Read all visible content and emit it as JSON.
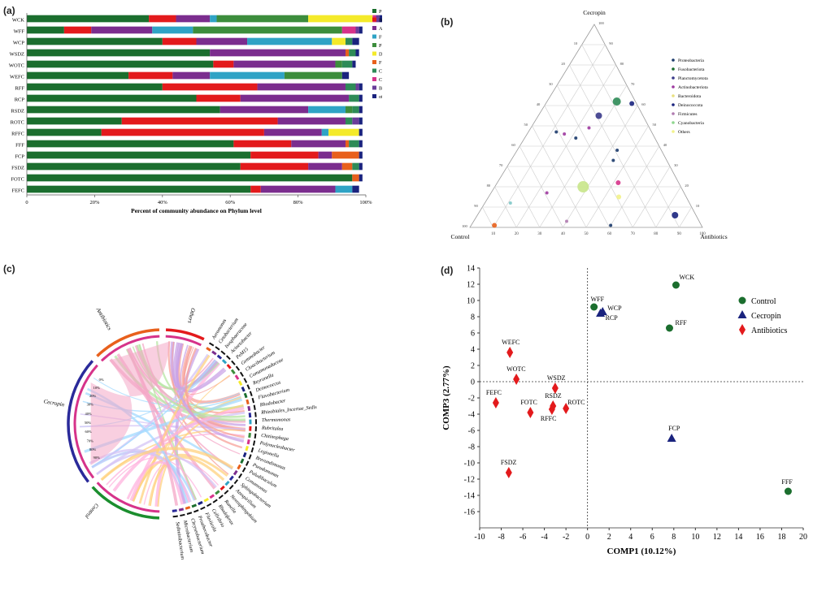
{
  "panel_labels": [
    "(a)",
    "(b)",
    "(c)",
    "(d)"
  ],
  "colors": {
    "Proteobacteria": "#1b6e2e",
    "Bacteroidota": "#e31a1c",
    "Actinobacteriota": "#7b2d8e",
    "Fusobacteriota": "#2fa3c5",
    "Planctomycetota": "#3c8d3c",
    "Deinococcota": "#f4ea2a",
    "Firmicutes": "#e8601c",
    "Chloroflexi": "#2e8b57",
    "Cyanobacteria": "#d6338a",
    "Bdellovibrionota": "#6a3d9a",
    "others": "#1a237e"
  },
  "chart_data": [
    {
      "type": "bar",
      "orientation": "horizontal",
      "stacked": true,
      "xlabel": "Percent of community abundance on Phylum level",
      "xticks": [
        "0",
        "20%",
        "40%",
        "60%",
        "80%",
        "100%"
      ],
      "xlim": [
        0,
        100
      ],
      "categories": [
        "WCK",
        "WFF",
        "WCP",
        "WSDZ",
        "WOTC",
        "WEFC",
        "RFF",
        "RCP",
        "RSDZ",
        "ROTC",
        "RFFC",
        "FFF",
        "FCP",
        "FSDZ",
        "FOTC",
        "FEFC"
      ],
      "series": [
        {
          "name": "Proteobacteria",
          "values": [
            36,
            11,
            40,
            54,
            55,
            30,
            40,
            50,
            57,
            28,
            22,
            61,
            66,
            63,
            96,
            66
          ]
        },
        {
          "name": "Bacteroidota",
          "values": [
            8,
            8,
            10,
            0,
            6,
            13,
            28,
            13,
            0,
            46,
            48,
            17,
            20,
            20,
            0,
            3
          ]
        },
        {
          "name": "Actinobacteriota",
          "values": [
            10,
            18,
            15,
            40,
            30,
            11,
            26,
            32,
            26,
            20,
            17,
            16,
            4,
            10,
            0,
            22
          ]
        },
        {
          "name": "Fusobacteriota",
          "values": [
            2,
            12,
            25,
            0,
            0,
            22,
            0,
            0,
            11,
            0,
            2,
            0,
            0,
            0,
            0,
            5
          ]
        },
        {
          "name": "Planctomycetota",
          "values": [
            27,
            44,
            0,
            0,
            2,
            17,
            0,
            0,
            2,
            0,
            0,
            0,
            0,
            0,
            0,
            0
          ]
        },
        {
          "name": "Deinococcota",
          "values": [
            19,
            0,
            4,
            0,
            0,
            0,
            0,
            0,
            0,
            0,
            9,
            0,
            0,
            0,
            0,
            0
          ]
        },
        {
          "name": "Firmicutes",
          "values": [
            0,
            0,
            0,
            1,
            0,
            0,
            0,
            0,
            0,
            0,
            0,
            1,
            8,
            3,
            2,
            0
          ]
        },
        {
          "name": "Chloroflexi",
          "values": [
            0,
            0,
            2,
            2,
            3,
            0,
            3,
            3,
            2,
            2,
            0,
            3,
            0,
            2,
            0,
            0
          ]
        },
        {
          "name": "Cyanobacteria",
          "values": [
            1,
            4,
            0,
            0,
            0,
            0,
            0,
            0,
            0,
            0,
            0,
            0,
            0,
            0,
            0,
            0
          ]
        },
        {
          "name": "Bdellovibrionota",
          "values": [
            1,
            1,
            0,
            0,
            0,
            0,
            1,
            0,
            0,
            2,
            0,
            0,
            0,
            0,
            0,
            0
          ]
        },
        {
          "name": "others",
          "values": [
            1,
            1,
            2,
            1,
            1,
            2,
            1,
            1,
            1,
            1,
            1,
            1,
            1,
            1,
            1,
            2
          ]
        }
      ],
      "legend_position": "right"
    },
    {
      "type": "scatter",
      "subtype": "ternary",
      "vertex_labels": [
        "Cecropin",
        "Control",
        "Antibiotics"
      ],
      "ticks": [
        "10",
        "20",
        "30",
        "40",
        "50",
        "60",
        "70",
        "80",
        "90",
        "100"
      ],
      "legend": [
        "Proteobacteria",
        "Fusobacteriota",
        "Planctomycetota",
        "Actinobacteriota",
        "Bacteroidota",
        "Deinococcota",
        "Firmicutes",
        "Cyanobacteria",
        "Others"
      ],
      "legend_colors": [
        "#1b3a6b",
        "#1b6e2e",
        "#3a3a8a",
        "#9e3aa0",
        "#e8e080",
        "#1a237e",
        "#b07bb0",
        "#8fd68f",
        "#f2f28a"
      ],
      "points": [
        {
          "cecropin": 0.62,
          "antibiotics": 0.3,
          "size": 5,
          "color": "#2e8b57"
        },
        {
          "cecropin": 0.61,
          "antibiotics": 0.37,
          "size": 3,
          "color": "#1a237e"
        },
        {
          "cecropin": 0.55,
          "antibiotics": 0.26,
          "size": 4,
          "color": "#3a3a8a"
        },
        {
          "cecropin": 0.49,
          "antibiotics": 0.25,
          "size": 2,
          "color": "#9e3aa0"
        },
        {
          "cecropin": 0.47,
          "antibiotics": 0.12,
          "size": 2,
          "color": "#1b3a6b"
        },
        {
          "cecropin": 0.46,
          "antibiotics": 0.16,
          "size": 2,
          "color": "#9e3aa0"
        },
        {
          "cecropin": 0.44,
          "antibiotics": 0.22,
          "size": 2,
          "color": "#1b3a6b"
        },
        {
          "cecropin": 0.38,
          "antibiotics": 0.43,
          "size": 2,
          "color": "#1b3a6b"
        },
        {
          "cecropin": 0.33,
          "antibiotics": 0.44,
          "size": 2,
          "color": "#1b3a6b"
        },
        {
          "cecropin": 0.2,
          "antibiotics": 0.38,
          "size": 7,
          "color": "#c8e68a"
        },
        {
          "cecropin": 0.22,
          "antibiotics": 0.52,
          "size": 3,
          "color": "#d6338a"
        },
        {
          "cecropin": 0.17,
          "antibiotics": 0.24,
          "size": 2,
          "color": "#9e3aa0"
        },
        {
          "cecropin": 0.15,
          "antibiotics": 0.56,
          "size": 3,
          "color": "#f2f28a"
        },
        {
          "cecropin": 0.12,
          "antibiotics": 0.11,
          "size": 2,
          "color": "#7fc8c8"
        },
        {
          "cecropin": 0.06,
          "antibiotics": 0.85,
          "size": 4,
          "color": "#1a237e"
        },
        {
          "cecropin": 0.03,
          "antibiotics": 0.4,
          "size": 2,
          "color": "#b07bb0"
        },
        {
          "cecropin": 0.01,
          "antibiotics": 0.1,
          "size": 3,
          "color": "#e8601c"
        },
        {
          "cecropin": 0.01,
          "antibiotics": 0.6,
          "size": 2,
          "color": "#1b3a6b"
        }
      ]
    },
    {
      "type": "chord",
      "groups": [
        "Antibiotics",
        "Others",
        "Cecropin",
        "Control"
      ],
      "percent_ticks": [
        "90%",
        "80%",
        "70%",
        "60%",
        "50%",
        "40%",
        "30%",
        "20%",
        "10%",
        "0%"
      ],
      "genus_labels": [
        "Aeromonas",
        "Cetobacterium",
        "Isosphaeraceae",
        "Acinetobacter",
        "PeM15",
        "Gemmobacter",
        "Cloacibacterium",
        "Comamonadaceae",
        "Reyranella",
        "Deinococcus",
        "Flavobacterium",
        "Rhodobacter",
        "Rhizobiales_Incertae_Sedis",
        "Thermomonas",
        "Rubritalea",
        "Chitinophaga",
        "Polynucleobacter",
        "Legionella",
        "Brevundimonas",
        "Pseudomonas",
        "Paludibaculum",
        "Comamonas",
        "Sphingobacterium",
        "Azospirillum",
        "Novosphingobium",
        "Runella",
        "Rhodoferax",
        "Cellvibrio",
        "Fluviicola",
        "Prosthecobacter",
        "Chryseobacterium",
        "Microbacterium",
        "Sediminibacterium"
      ]
    },
    {
      "type": "scatter",
      "xlabel": "COMP1 (10.12%)",
      "ylabel": "COMP3 (2.77%)",
      "xlim": [
        -10,
        20
      ],
      "ylim": [
        -18,
        14
      ],
      "xticks": [
        -10,
        -8,
        -6,
        -4,
        -2,
        0,
        2,
        4,
        6,
        8,
        10,
        12,
        14,
        16,
        18,
        20
      ],
      "yticks": [
        14,
        12,
        10,
        8,
        6,
        4,
        2,
        0,
        -2,
        -4,
        -6,
        -8,
        -10,
        -12,
        -14,
        -16
      ],
      "legend": [
        {
          "name": "Control",
          "marker": "circle",
          "color": "#1b6e2e"
        },
        {
          "name": "Cecropin",
          "marker": "triangle",
          "color": "#1a237e"
        },
        {
          "name": "Antibiotics",
          "marker": "diamond",
          "color": "#e31a1c"
        }
      ],
      "points": [
        {
          "label": "WCK",
          "x": 8.2,
          "y": 11.9,
          "group": "Control"
        },
        {
          "label": "WFF",
          "x": 0.6,
          "y": 9.2,
          "group": "Control"
        },
        {
          "label": "WCP",
          "x": 1.4,
          "y": 8.6,
          "group": "Cecropin"
        },
        {
          "label": "RCP",
          "x": 1.2,
          "y": 8.4,
          "group": "Cecropin"
        },
        {
          "label": "RFF",
          "x": 7.6,
          "y": 6.6,
          "group": "Control"
        },
        {
          "label": "WEFC",
          "x": -7.2,
          "y": 3.6,
          "group": "Antibiotics"
        },
        {
          "label": "WOTC",
          "x": -6.6,
          "y": 0.3,
          "group": "Antibiotics"
        },
        {
          "label": "WSDZ",
          "x": -3.0,
          "y": -0.8,
          "group": "Antibiotics"
        },
        {
          "label": "FEFC",
          "x": -8.5,
          "y": -2.6,
          "group": "Antibiotics"
        },
        {
          "label": "FOTC",
          "x": -5.3,
          "y": -3.8,
          "group": "Antibiotics"
        },
        {
          "label": "RSDZ",
          "x": -3.2,
          "y": -3.0,
          "group": "Antibiotics"
        },
        {
          "label": "RFFC",
          "x": -3.3,
          "y": -3.4,
          "group": "Antibiotics"
        },
        {
          "label": "ROTC",
          "x": -2.0,
          "y": -3.3,
          "group": "Antibiotics"
        },
        {
          "label": "FCP",
          "x": 7.8,
          "y": -7.0,
          "group": "Cecropin"
        },
        {
          "label": "FSDZ",
          "x": -7.3,
          "y": -11.2,
          "group": "Antibiotics"
        },
        {
          "label": "FFF",
          "x": 18.6,
          "y": -13.5,
          "group": "Control"
        }
      ]
    }
  ]
}
